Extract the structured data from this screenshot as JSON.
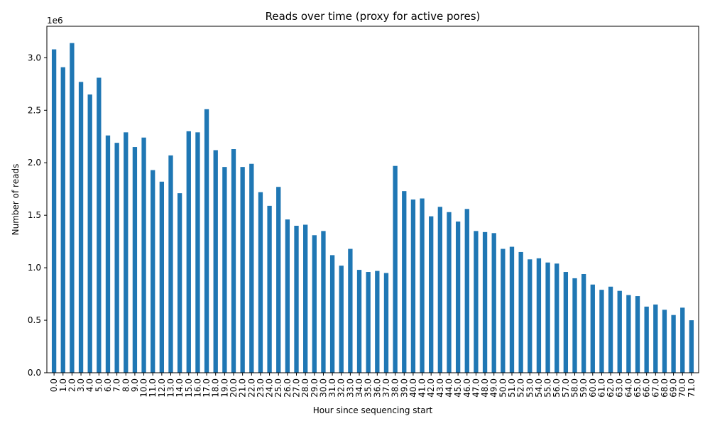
{
  "chart_data": {
    "type": "bar",
    "title": "Reads over time (proxy for active pores)",
    "xlabel": "Hour since sequencing start",
    "ylabel": "Number of reads",
    "y_offset_text": "1e6",
    "ylim": [
      0,
      3300000
    ],
    "yticks": [
      0,
      500000,
      1000000,
      1500000,
      2000000,
      2500000,
      3000000
    ],
    "ytick_labels": [
      "0.0",
      "0.5",
      "1.0",
      "1.5",
      "2.0",
      "2.5",
      "3.0"
    ],
    "bar_color": "#1f77b4",
    "grid": false,
    "legend": "none",
    "categories": [
      "0.0",
      "1.0",
      "2.0",
      "3.0",
      "4.0",
      "5.0",
      "6.0",
      "7.0",
      "8.0",
      "9.0",
      "10.0",
      "11.0",
      "12.0",
      "13.0",
      "14.0",
      "15.0",
      "16.0",
      "17.0",
      "18.0",
      "19.0",
      "20.0",
      "21.0",
      "22.0",
      "23.0",
      "24.0",
      "25.0",
      "26.0",
      "27.0",
      "28.0",
      "29.0",
      "30.0",
      "31.0",
      "32.0",
      "33.0",
      "34.0",
      "35.0",
      "36.0",
      "37.0",
      "38.0",
      "39.0",
      "40.0",
      "41.0",
      "42.0",
      "43.0",
      "44.0",
      "45.0",
      "46.0",
      "47.0",
      "48.0",
      "49.0",
      "50.0",
      "51.0",
      "52.0",
      "53.0",
      "54.0",
      "55.0",
      "56.0",
      "57.0",
      "58.0",
      "59.0",
      "60.0",
      "61.0",
      "62.0",
      "63.0",
      "64.0",
      "65.0",
      "66.0",
      "67.0",
      "68.0",
      "69.0",
      "70.0",
      "71.0"
    ],
    "values": [
      3080000,
      2910000,
      3140000,
      2770000,
      2650000,
      2810000,
      2260000,
      2190000,
      2290000,
      2150000,
      2240000,
      1930000,
      1820000,
      2070000,
      1710000,
      2300000,
      2290000,
      2510000,
      2120000,
      1960000,
      2130000,
      1960000,
      1990000,
      1720000,
      1590000,
      1770000,
      1460000,
      1400000,
      1410000,
      1310000,
      1350000,
      1120000,
      1020000,
      1180000,
      980000,
      960000,
      970000,
      950000,
      1970000,
      1730000,
      1650000,
      1660000,
      1490000,
      1580000,
      1530000,
      1440000,
      1560000,
      1350000,
      1340000,
      1330000,
      1180000,
      1200000,
      1150000,
      1080000,
      1090000,
      1050000,
      1040000,
      960000,
      900000,
      940000,
      840000,
      790000,
      820000,
      780000,
      740000,
      730000,
      630000,
      650000,
      600000,
      550000,
      620000,
      500000
    ]
  }
}
